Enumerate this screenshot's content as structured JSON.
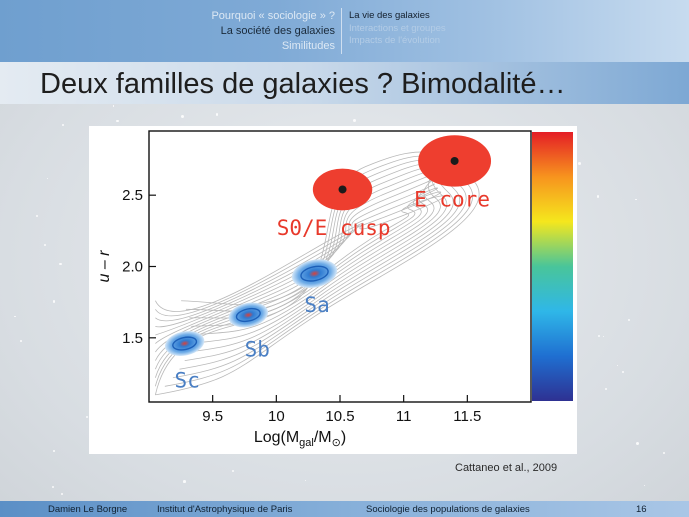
{
  "nav": {
    "left": [
      {
        "label": "Pourquoi « sociologie » ?",
        "state": "dim"
      },
      {
        "label": "La société des galaxies",
        "state": "active"
      },
      {
        "label": "Similitudes",
        "state": "dim"
      }
    ],
    "right": [
      {
        "label": "La vie des galaxies",
        "state": "active"
      },
      {
        "label": "Interactions et groupes",
        "state": "dim"
      },
      {
        "label": "Impacts de l'évolution",
        "state": "dim"
      }
    ]
  },
  "slide": {
    "title": "Deux familles de galaxies ? Bimodalité…",
    "citation": "Cattaneo et al., 2009"
  },
  "chart_data": {
    "type": "heatmap",
    "xlabel_pre": "Log(M",
    "xlabel_sub": "gal",
    "xlabel_mid": "/M",
    "xlabel_sub2": "⊙",
    "xlabel_post": ")",
    "ylabel": "u – r",
    "xlim": [
      9.0,
      12.0
    ],
    "ylim": [
      1.05,
      2.95
    ],
    "x_ticks": [
      "9.5",
      "10",
      "10.5",
      "11",
      "11.5"
    ],
    "x_tick_values": [
      9.5,
      10.0,
      10.5,
      11.0,
      11.5
    ],
    "y_ticks": [
      "1.5",
      "2.0",
      "2.5"
    ],
    "y_tick_values": [
      1.5,
      2.0,
      2.5
    ],
    "annotations": [
      {
        "text": "Sc",
        "x": 9.3,
        "y": 1.15,
        "color": "#4a7fc4"
      },
      {
        "text": "Sb",
        "x": 9.85,
        "y": 1.37,
        "color": "#4a7fc4"
      },
      {
        "text": "Sa",
        "x": 10.32,
        "y": 1.68,
        "color": "#4a7fc4"
      },
      {
        "text": "S0/E cusp",
        "x": 10.45,
        "y": 2.22,
        "color": "#e8392b"
      },
      {
        "text": "E core",
        "x": 11.38,
        "y": 2.42,
        "color": "#e8392b"
      }
    ],
    "galaxies": [
      {
        "kind": "spiral",
        "x": 9.28,
        "y": 1.46,
        "size": 1.0
      },
      {
        "kind": "spiral",
        "x": 9.78,
        "y": 1.66,
        "size": 1.0
      },
      {
        "kind": "spiral",
        "x": 10.3,
        "y": 1.95,
        "size": 1.15
      },
      {
        "kind": "elliptical",
        "x": 10.52,
        "y": 2.54,
        "size": 1.1
      },
      {
        "kind": "elliptical",
        "x": 11.4,
        "y": 2.74,
        "size": 1.35
      }
    ],
    "colors": {
      "spiral_outer": "#6aa9e6",
      "spiral_mid": "#2f7bd1",
      "spiral_core": "#d9413a",
      "elliptical": "#ee3e2f",
      "core_dot": "#1b1b1b",
      "contour": "#b9b9b9"
    },
    "colorbar": [
      "#2e3192",
      "#1f6fd1",
      "#2fb7e8",
      "#49c59a",
      "#f5e71d",
      "#f7941e",
      "#e41e26"
    ]
  },
  "footer": {
    "author": "Damien Le Borgne",
    "institute": "Institut d'Astrophysique de Paris",
    "course": "Sociologie des populations de galaxies",
    "page": "16"
  }
}
